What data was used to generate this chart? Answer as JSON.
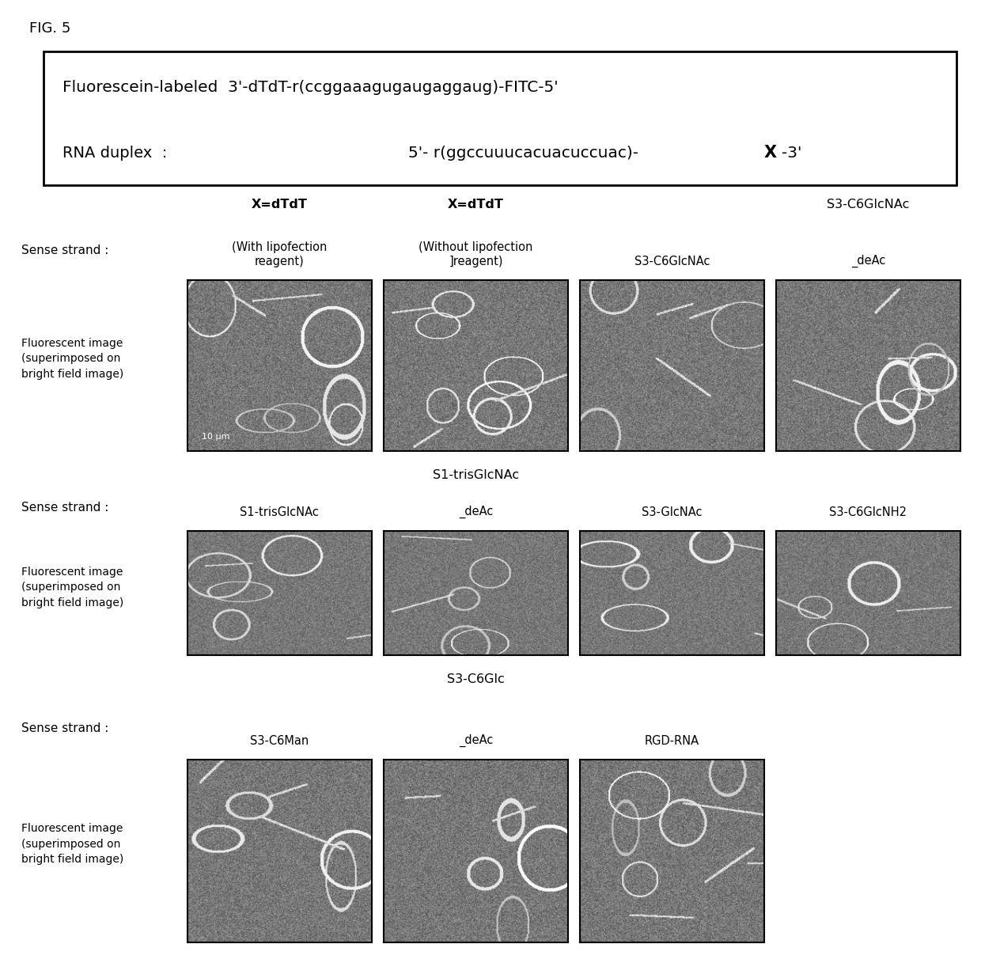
{
  "fig_label": "FIG. 5",
  "bg_color": "#ffffff",
  "header": {
    "line1_left": "Fluorescein-labeled  3’-dTdT-r(ccggaaagugaugaggaug)-FITC-5’",
    "line2_left": "RNA duplex  :",
    "line2_right_normal": "5’- r(ggccuuucacuacuccuac)-",
    "line2_right_bold": "X",
    "line2_right_end": "-3’"
  },
  "rows": [
    {
      "ncols": 4,
      "top_labels": [
        "X=dTdT",
        "X=dTdT",
        "",
        "S3-C6GlcNAc"
      ],
      "top_bold": [
        true,
        true,
        false,
        false
      ],
      "sub_labels": [
        "(With lipofection\nreagent)",
        "(Without lipofection\n]reagent)",
        "S3-C6GlcNAc",
        "_deAc"
      ],
      "seeds": [
        1,
        2,
        3,
        4
      ]
    },
    {
      "ncols": 4,
      "top_labels": [
        "",
        "S1-trisGlcNAc",
        "",
        ""
      ],
      "top_bold": [
        false,
        false,
        false,
        false
      ],
      "sub_labels": [
        "S1-trisGlcNAc",
        "_deAc",
        "S3-GlcNAc",
        "S3-C6GlcNH2"
      ],
      "seeds": [
        5,
        6,
        7,
        8
      ]
    },
    {
      "ncols": 3,
      "top_labels": [
        "",
        "S3-C6Glc",
        "",
        ""
      ],
      "top_bold": [
        false,
        false,
        false,
        false
      ],
      "sub_labels": [
        "S3-C6Man",
        "_deAc",
        "RGD-RNA",
        ""
      ],
      "seeds": [
        9,
        10,
        11,
        12
      ]
    }
  ]
}
